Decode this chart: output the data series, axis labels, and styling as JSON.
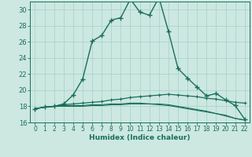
{
  "title": "",
  "xlabel": "Humidex (Indice chaleur)",
  "background_color": "#cce8e0",
  "grid_color": "#aad4cc",
  "line_color": "#1a6e5e",
  "xlim": [
    -0.5,
    22.5
  ],
  "ylim": [
    16,
    31
  ],
  "yticks": [
    16,
    18,
    20,
    22,
    24,
    26,
    28,
    30
  ],
  "xticks": [
    0,
    1,
    2,
    3,
    4,
    5,
    6,
    7,
    8,
    9,
    10,
    11,
    12,
    13,
    14,
    15,
    16,
    17,
    18,
    19,
    20,
    21,
    22
  ],
  "curve1_x": [
    0,
    1,
    2,
    3,
    4,
    5,
    6,
    7,
    8,
    9,
    10,
    11,
    12,
    13,
    14,
    15,
    16,
    17,
    18,
    19,
    20,
    21,
    22
  ],
  "curve1_y": [
    17.7,
    17.9,
    18.0,
    18.3,
    19.4,
    21.4,
    26.1,
    26.8,
    28.7,
    29.0,
    31.3,
    29.7,
    29.3,
    31.5,
    27.3,
    22.7,
    21.5,
    20.4,
    19.3,
    19.6,
    18.8,
    18.1,
    16.4
  ],
  "curve2_x": [
    0,
    1,
    2,
    3,
    4,
    5,
    6,
    7,
    8,
    9,
    10,
    11,
    12,
    13,
    14,
    15,
    16,
    17,
    18,
    19,
    20,
    21,
    22
  ],
  "curve2_y": [
    17.7,
    17.9,
    18.0,
    18.2,
    18.3,
    18.4,
    18.5,
    18.6,
    18.8,
    18.9,
    19.1,
    19.2,
    19.3,
    19.4,
    19.5,
    19.4,
    19.3,
    19.2,
    19.0,
    18.9,
    18.7,
    18.5,
    18.4
  ],
  "curve3_x": [
    0,
    1,
    2,
    3,
    4,
    5,
    6,
    7,
    8,
    9,
    10,
    11,
    12,
    13,
    14,
    15,
    16,
    17,
    18,
    19,
    20,
    21,
    22
  ],
  "curve3_y": [
    17.7,
    17.9,
    18.0,
    18.0,
    18.0,
    18.0,
    18.1,
    18.1,
    18.2,
    18.2,
    18.3,
    18.3,
    18.3,
    18.2,
    18.1,
    17.9,
    17.7,
    17.5,
    17.3,
    17.1,
    16.8,
    16.5,
    16.3
  ],
  "curve4_x": [
    0,
    1,
    2,
    3,
    4,
    5,
    6,
    7,
    8,
    9,
    10,
    11,
    12,
    13,
    14,
    15,
    16,
    17,
    18,
    19,
    20,
    21,
    22
  ],
  "curve4_y": [
    17.7,
    17.9,
    18.0,
    18.1,
    18.1,
    18.1,
    18.2,
    18.2,
    18.3,
    18.3,
    18.4,
    18.4,
    18.3,
    18.3,
    18.2,
    18.0,
    17.8,
    17.6,
    17.4,
    17.1,
    16.9,
    16.5,
    16.3
  ]
}
